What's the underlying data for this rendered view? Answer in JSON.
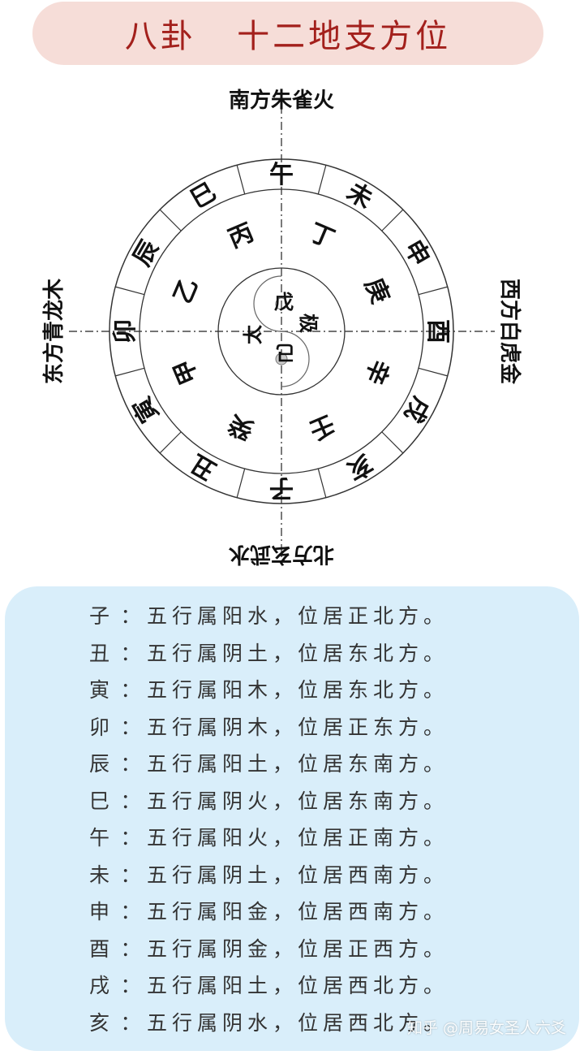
{
  "title": "八卦   十二地支方位",
  "directions": {
    "south": "南方朱雀火",
    "north": "北方玄武水",
    "east": "东方青龙木",
    "west": "西方白虎金"
  },
  "earthly_branches": [
    "子",
    "丑",
    "寅",
    "卯",
    "辰",
    "巳",
    "午",
    "未",
    "申",
    "酉",
    "戌",
    "亥"
  ],
  "heavenly_stems": [
    "甲",
    "乙",
    "丙",
    "丁",
    "庚",
    "辛",
    "壬",
    "癸"
  ],
  "center": {
    "top": "戊",
    "left": "太",
    "right": "极",
    "bottom": "己"
  },
  "rows": [
    {
      "branch": "子",
      "desc": "五行属阳水，位居正北方。"
    },
    {
      "branch": "丑",
      "desc": "五行属阴土，位居东北方。"
    },
    {
      "branch": "寅",
      "desc": "五行属阳木，位居东北方。"
    },
    {
      "branch": "卯",
      "desc": "五行属阴木，位居正东方。"
    },
    {
      "branch": "辰",
      "desc": "五行属阳土，位居东南方。"
    },
    {
      "branch": "巳",
      "desc": "五行属阴火，位居东南方。"
    },
    {
      "branch": "午",
      "desc": "五行属阳火，位居正南方。"
    },
    {
      "branch": "未",
      "desc": "五行属阴土，位居西南方。"
    },
    {
      "branch": "申",
      "desc": "五行属阳金，位居西南方。"
    },
    {
      "branch": "酉",
      "desc": "五行属阴金，位居正西方。"
    },
    {
      "branch": "戌",
      "desc": "五行属阳土，位居西北方。"
    },
    {
      "branch": "亥",
      "desc": "五行属阴水，位居西北方。"
    }
  ],
  "colon": "：",
  "watermark": "知乎 @周易女圣人六爻",
  "colors": {
    "title_bg": "#f6ddd8",
    "title_text": "#a3201c",
    "panel_bg": "#d9eefa",
    "row_text": "#333333"
  }
}
